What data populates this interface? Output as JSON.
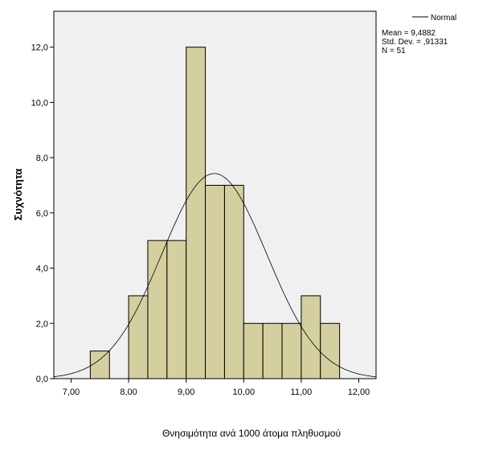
{
  "chart_data": {
    "type": "bar",
    "subtype": "histogram",
    "xlabel": "Θνησιμότητα ανά 1000 άτομα πληθυσμού",
    "ylabel": "Συχνότητα",
    "xlim": [
      6.7,
      12.3
    ],
    "ylim": [
      0,
      13.3
    ],
    "x_ticks": [
      7,
      8,
      9,
      10,
      11,
      12
    ],
    "x_tick_labels": [
      "7,00",
      "8,00",
      "9,00",
      "10,00",
      "11,00",
      "12,00"
    ],
    "y_ticks": [
      0,
      2,
      4,
      6,
      8,
      10,
      12
    ],
    "y_tick_labels": [
      "0,0",
      "2,0",
      "4,0",
      "6,0",
      "8,0",
      "10,0",
      "12,0"
    ],
    "bin_width": 0.3333,
    "bins": [
      {
        "start": 7.3333,
        "count": 1
      },
      {
        "start": 7.6667,
        "count": 0
      },
      {
        "start": 8.0,
        "count": 3
      },
      {
        "start": 8.3333,
        "count": 5
      },
      {
        "start": 8.6667,
        "count": 5
      },
      {
        "start": 9.0,
        "count": 12
      },
      {
        "start": 9.3333,
        "count": 7
      },
      {
        "start": 9.6667,
        "count": 7
      },
      {
        "start": 10.0,
        "count": 2
      },
      {
        "start": 10.3333,
        "count": 2
      },
      {
        "start": 10.6667,
        "count": 2
      },
      {
        "start": 11.0,
        "count": 3
      },
      {
        "start": 11.3333,
        "count": 2
      }
    ],
    "bar_color": "#d4cf9f",
    "plot_background": "#f0f0f0",
    "normal_curve": {
      "mean": 9.4882,
      "std": 0.91331,
      "n": 51
    },
    "legend": {
      "line_label": "Normal",
      "position": "top-right"
    },
    "stats": {
      "mean": "Mean = 9,4882",
      "std_dev": "Std. Dev. = ,91331",
      "n": "N = 51"
    }
  }
}
